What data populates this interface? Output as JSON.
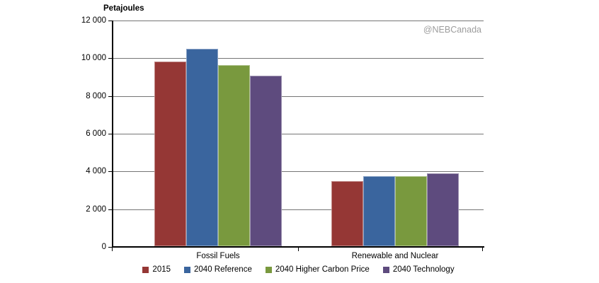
{
  "watermark": "@NEBCanada",
  "chart_data": {
    "type": "bar",
    "title": "",
    "xlabel": "",
    "ylabel": "Petajoules",
    "categories": [
      "Fossil Fuels",
      "Renewable and Nuclear"
    ],
    "series": [
      {
        "name": "2015",
        "color": "#953735",
        "values": [
          9800,
          3450
        ]
      },
      {
        "name": "2040 Reference",
        "color": "#3A659E",
        "values": [
          10450,
          3700
        ]
      },
      {
        "name": "2040 Higher Carbon Price",
        "color": "#79993E",
        "values": [
          9600,
          3700
        ]
      },
      {
        "name": "2040 Technology",
        "color": "#5E4B7E",
        "values": [
          9050,
          3850
        ]
      }
    ],
    "ylim": [
      0,
      12000
    ],
    "ytick_step": 2000,
    "ytick_labels": [
      "0",
      "2 000",
      "4 000",
      "6 000",
      "8 000",
      "10 000",
      "12 000"
    ],
    "grid": true,
    "legend_position": "bottom",
    "annotations": [
      "@NEBCanada"
    ]
  }
}
